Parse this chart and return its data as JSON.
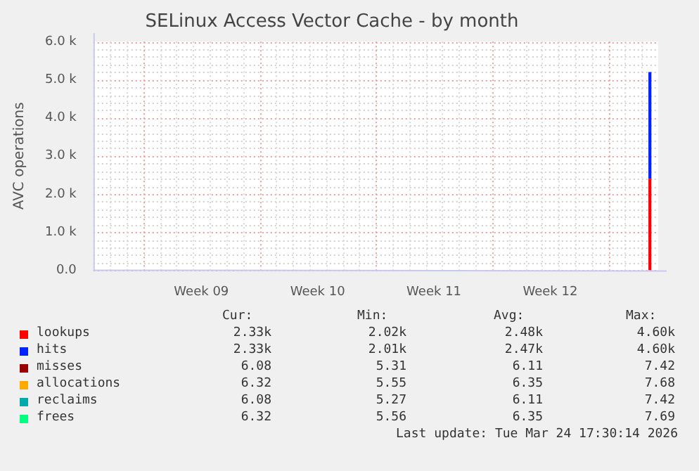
{
  "chart_data": {
    "type": "bar",
    "stacked": true,
    "title": "SELinux Access Vector Cache - by month",
    "ylabel": "AVC operations",
    "categories": [
      null,
      null,
      null,
      null,
      null,
      null,
      "Week 09",
      null,
      null,
      null,
      null,
      null,
      null,
      "Week 10",
      null,
      null,
      null,
      null,
      null,
      null,
      "Week 11",
      null,
      null,
      null,
      null,
      null,
      null,
      "Week 12",
      null,
      null,
      null,
      null,
      null,
      null
    ],
    "ylim": [
      0,
      6000
    ],
    "yticks": [
      {
        "value": 0,
        "label": "0.0"
      },
      {
        "value": 200,
        "label": null
      },
      {
        "value": 400,
        "label": null
      },
      {
        "value": 600,
        "label": null
      },
      {
        "value": 800,
        "label": null
      },
      {
        "value": 1000,
        "label": "1.0 k"
      },
      {
        "value": 1200,
        "label": null
      },
      {
        "value": 1400,
        "label": null
      },
      {
        "value": 1600,
        "label": null
      },
      {
        "value": 1800,
        "label": null
      },
      {
        "value": 2000,
        "label": "2.0 k"
      },
      {
        "value": 2200,
        "label": null
      },
      {
        "value": 2400,
        "label": null
      },
      {
        "value": 2600,
        "label": null
      },
      {
        "value": 2800,
        "label": null
      },
      {
        "value": 3000,
        "label": "3.0 k"
      },
      {
        "value": 3200,
        "label": null
      },
      {
        "value": 3400,
        "label": null
      },
      {
        "value": 3600,
        "label": null
      },
      {
        "value": 3800,
        "label": null
      },
      {
        "value": 4000,
        "label": "4.0 k"
      },
      {
        "value": 4200,
        "label": null
      },
      {
        "value": 4400,
        "label": null
      },
      {
        "value": 4600,
        "label": null
      },
      {
        "value": 4800,
        "label": null
      },
      {
        "value": 5000,
        "label": "5.0 k"
      },
      {
        "value": 5200,
        "label": null
      },
      {
        "value": 5400,
        "label": null
      },
      {
        "value": 5600,
        "label": null
      },
      {
        "value": 5800,
        "label": null
      },
      {
        "value": 6000,
        "label": "6.0 k"
      }
    ],
    "grid": true,
    "legend": "bottom",
    "series": [
      {
        "name": "lookups",
        "color": "#ff0000",
        "values": [
          null,
          null,
          null,
          null,
          null,
          null,
          null,
          null,
          null,
          null,
          null,
          null,
          null,
          null,
          null,
          null,
          null,
          null,
          null,
          null,
          null,
          null,
          null,
          null,
          null,
          null,
          null,
          null,
          null,
          null,
          null,
          null,
          null,
          2400
        ]
      },
      {
        "name": "hits",
        "color": "#0022ff",
        "values": [
          null,
          null,
          null,
          null,
          null,
          null,
          null,
          null,
          null,
          null,
          null,
          null,
          null,
          null,
          null,
          null,
          null,
          null,
          null,
          null,
          null,
          null,
          null,
          null,
          null,
          null,
          null,
          null,
          null,
          null,
          null,
          null,
          null,
          2800
        ]
      },
      {
        "name": "misses",
        "color": "#990000",
        "values": [
          null,
          null,
          null,
          null,
          null,
          null,
          null,
          null,
          null,
          null,
          null,
          null,
          null,
          null,
          null,
          null,
          null,
          null,
          null,
          null,
          null,
          null,
          null,
          null,
          null,
          null,
          null,
          null,
          null,
          null,
          null,
          null,
          null,
          null
        ]
      },
      {
        "name": "allocations",
        "color": "#ffaa00",
        "values": [
          null,
          null,
          null,
          null,
          null,
          null,
          null,
          null,
          null,
          null,
          null,
          null,
          null,
          null,
          null,
          null,
          null,
          null,
          null,
          null,
          null,
          null,
          null,
          null,
          null,
          null,
          null,
          null,
          null,
          null,
          null,
          null,
          null,
          null
        ]
      },
      {
        "name": "reclaims",
        "color": "#00aaaa",
        "values": [
          null,
          null,
          null,
          null,
          null,
          null,
          null,
          null,
          null,
          null,
          null,
          null,
          null,
          null,
          null,
          null,
          null,
          null,
          null,
          null,
          null,
          null,
          null,
          null,
          null,
          null,
          null,
          null,
          null,
          null,
          null,
          null,
          null,
          null
        ]
      },
      {
        "name": "frees",
        "color": "#00ff80",
        "values": [
          null,
          null,
          null,
          null,
          null,
          null,
          null,
          null,
          null,
          null,
          null,
          null,
          null,
          null,
          null,
          null,
          null,
          null,
          null,
          null,
          null,
          null,
          null,
          null,
          null,
          null,
          null,
          null,
          null,
          null,
          null,
          null,
          null,
          null
        ]
      }
    ],
    "annotations": [
      "Cur:",
      "Min:",
      "Avg:",
      "Max:",
      "2.33k",
      "2.02k",
      "2.48k",
      "4.60k",
      "2.33k",
      "2.01k",
      "2.47k",
      "4.60k",
      "6.08",
      "5.31",
      "6.11",
      "7.42",
      "6.32",
      "5.55",
      "6.35",
      "7.68",
      "6.08",
      "5.27",
      "6.11",
      "7.42",
      "6.32",
      "5.56",
      "6.35",
      "7.69",
      "Last update: Tue Mar 24 17:30:14 2026"
    ]
  }
}
